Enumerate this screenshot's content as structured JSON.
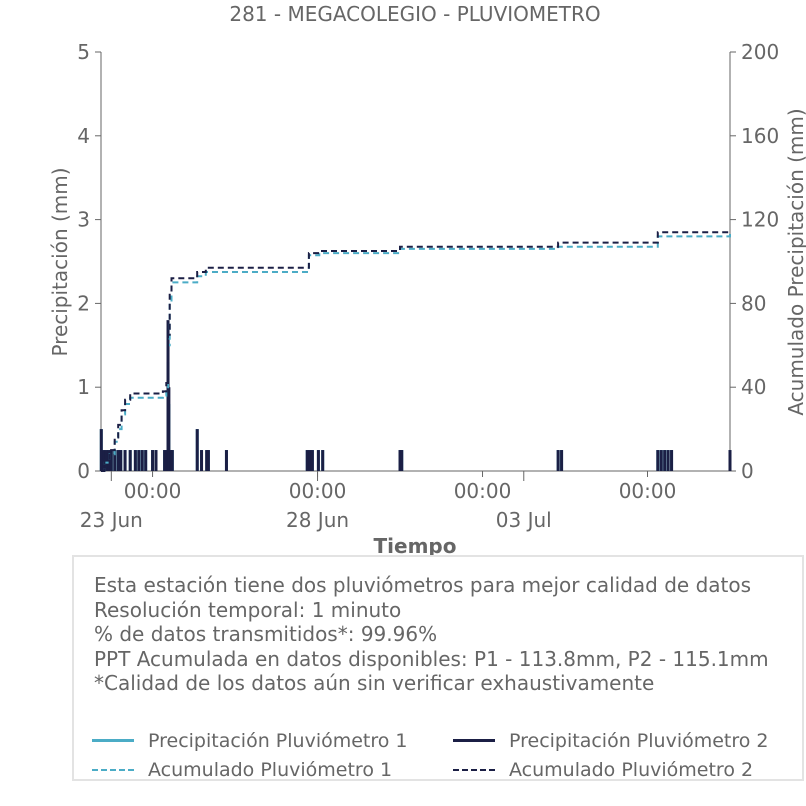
{
  "colors": {
    "p1": "#4bacc6",
    "p2": "#1b1f45",
    "text": "#666666",
    "axis": "#666666"
  },
  "chart_data": {
    "type": "line",
    "title": "281 - MEGACOLEGIO - PLUVIOMETRO",
    "xlabel": "Tiempo",
    "ylabel": "Precipitación (mm)",
    "y2label": "Acumulado Precipitación (mm)",
    "x_start": "2023-06-22T18:00",
    "x_end": "2023-07-08T00:00",
    "ylim": [
      0,
      5
    ],
    "y2lim": [
      0,
      200
    ],
    "yticks": [
      "0",
      "1",
      "2",
      "3",
      "4",
      "5"
    ],
    "y2ticks": [
      "0",
      "40",
      "80",
      "120",
      "160",
      "200"
    ],
    "xtick_labels": [
      {
        "x": "2023-06-24T00:00",
        "label": "00:00"
      },
      {
        "x": "2023-06-28T00:00",
        "label": "00:00"
      },
      {
        "x": "2023-07-02T00:00",
        "label": "00:00"
      },
      {
        "x": "2023-07-06T00:00",
        "label": "00:00"
      },
      {
        "x": "2023-07-10T00:00",
        "label": "00:00"
      }
    ],
    "xdate_labels": [
      {
        "x": "2023-06-23T00:00",
        "label": "23 Jun"
      },
      {
        "x": "2023-06-28T00:00",
        "label": "28 Jun"
      },
      {
        "x": "2023-07-03T00:00",
        "label": "03 Jul"
      }
    ],
    "series": [
      {
        "name": "Precipitación Pluviómetro 1",
        "axis": "left",
        "style": "bar",
        "color": "#4bacc6",
        "points": [
          [
            "2023-06-22T18:10",
            0.5
          ],
          [
            "2023-06-22T19:30",
            0.25
          ],
          [
            "2023-06-22T21:00",
            0.25
          ],
          [
            "2023-06-22T22:30",
            0.25
          ],
          [
            "2023-06-23T00:00",
            0.25
          ],
          [
            "2023-06-23T02:00",
            0.25
          ],
          [
            "2023-06-23T04:00",
            0.25
          ],
          [
            "2023-06-23T05:30",
            0.25
          ],
          [
            "2023-06-23T08:00",
            0.25
          ],
          [
            "2023-06-23T11:00",
            0.25
          ],
          [
            "2023-06-23T14:00",
            0.25
          ],
          [
            "2023-06-23T16:00",
            0.25
          ],
          [
            "2023-06-23T18:00",
            0.25
          ],
          [
            "2023-06-23T20:00",
            0.25
          ],
          [
            "2023-06-24T00:00",
            0.25
          ],
          [
            "2023-06-24T02:00",
            0.25
          ],
          [
            "2023-06-24T07:00",
            0.25
          ],
          [
            "2023-06-24T08:30",
            0.25
          ],
          [
            "2023-06-24T09:00",
            1.3
          ],
          [
            "2023-06-24T09:30",
            0.8
          ],
          [
            "2023-06-24T10:30",
            0.25
          ],
          [
            "2023-06-24T11:30",
            0.25
          ],
          [
            "2023-06-25T02:00",
            0.5
          ],
          [
            "2023-06-25T04:30",
            0.25
          ],
          [
            "2023-06-25T07:30",
            0.25
          ],
          [
            "2023-06-25T08:30",
            0.25
          ],
          [
            "2023-06-25T19:00",
            0.25
          ],
          [
            "2023-06-27T18:00",
            0.25
          ],
          [
            "2023-06-27T19:30",
            0.25
          ],
          [
            "2023-06-27T21:00",
            0.25
          ],
          [
            "2023-06-28T00:30",
            0.25
          ],
          [
            "2023-06-28T03:00",
            0.25
          ],
          [
            "2023-06-30T00:00",
            0.25
          ],
          [
            "2023-06-30T01:00",
            0.25
          ],
          [
            "2023-07-03T20:00",
            0.25
          ],
          [
            "2023-07-03T22:00",
            0.25
          ],
          [
            "2023-07-06T06:00",
            0.25
          ],
          [
            "2023-07-06T08:00",
            0.25
          ],
          [
            "2023-07-06T10:00",
            0.25
          ],
          [
            "2023-07-06T12:00",
            0.25
          ],
          [
            "2023-07-06T14:00",
            0.25
          ],
          [
            "2023-07-08T00:00",
            0.25
          ]
        ]
      },
      {
        "name": "Precipitación Pluviómetro 2",
        "axis": "left",
        "style": "bar",
        "color": "#1b1f45",
        "points": [
          [
            "2023-06-22T18:10",
            0.5
          ],
          [
            "2023-06-22T19:30",
            0.25
          ],
          [
            "2023-06-22T21:00",
            0.25
          ],
          [
            "2023-06-22T22:30",
            0.25
          ],
          [
            "2023-06-23T00:00",
            0.25
          ],
          [
            "2023-06-23T02:00",
            0.25
          ],
          [
            "2023-06-23T04:00",
            0.25
          ],
          [
            "2023-06-23T05:30",
            0.25
          ],
          [
            "2023-06-23T08:00",
            0.25
          ],
          [
            "2023-06-23T11:00",
            0.25
          ],
          [
            "2023-06-23T14:00",
            0.25
          ],
          [
            "2023-06-23T16:00",
            0.25
          ],
          [
            "2023-06-23T18:00",
            0.25
          ],
          [
            "2023-06-23T20:00",
            0.25
          ],
          [
            "2023-06-24T00:00",
            0.25
          ],
          [
            "2023-06-24T02:00",
            0.25
          ],
          [
            "2023-06-24T07:00",
            0.25
          ],
          [
            "2023-06-24T08:30",
            0.25
          ],
          [
            "2023-06-24T09:00",
            1.8
          ],
          [
            "2023-06-24T09:30",
            1.0
          ],
          [
            "2023-06-24T10:30",
            0.25
          ],
          [
            "2023-06-24T11:30",
            0.25
          ],
          [
            "2023-06-25T02:00",
            0.5
          ],
          [
            "2023-06-25T04:30",
            0.25
          ],
          [
            "2023-06-25T07:30",
            0.25
          ],
          [
            "2023-06-25T08:30",
            0.25
          ],
          [
            "2023-06-25T19:00",
            0.25
          ],
          [
            "2023-06-27T18:00",
            0.25
          ],
          [
            "2023-06-27T19:30",
            0.25
          ],
          [
            "2023-06-27T21:00",
            0.25
          ],
          [
            "2023-06-28T00:30",
            0.25
          ],
          [
            "2023-06-28T03:00",
            0.25
          ],
          [
            "2023-06-30T00:00",
            0.25
          ],
          [
            "2023-06-30T01:00",
            0.25
          ],
          [
            "2023-07-03T20:00",
            0.25
          ],
          [
            "2023-07-03T22:00",
            0.25
          ],
          [
            "2023-07-06T06:00",
            0.25
          ],
          [
            "2023-07-06T08:00",
            0.25
          ],
          [
            "2023-07-06T10:00",
            0.25
          ],
          [
            "2023-07-06T12:00",
            0.25
          ],
          [
            "2023-07-06T14:00",
            0.25
          ],
          [
            "2023-07-08T00:00",
            0.25
          ]
        ]
      },
      {
        "name": "Acumulado Pluviómetro 1",
        "axis": "right",
        "style": "dashed-step",
        "color": "#4bacc6",
        "points": [
          [
            "2023-06-22T18:00",
            0
          ],
          [
            "2023-06-22T20:00",
            4
          ],
          [
            "2023-06-22T23:00",
            8
          ],
          [
            "2023-06-23T02:00",
            14
          ],
          [
            "2023-06-23T04:00",
            20
          ],
          [
            "2023-06-23T06:00",
            27
          ],
          [
            "2023-06-23T08:00",
            32
          ],
          [
            "2023-06-23T11:00",
            35
          ],
          [
            "2023-06-23T13:00",
            35
          ],
          [
            "2023-06-24T06:00",
            36
          ],
          [
            "2023-06-24T08:00",
            40
          ],
          [
            "2023-06-24T09:00",
            60
          ],
          [
            "2023-06-24T10:00",
            80
          ],
          [
            "2023-06-24T11:00",
            90
          ],
          [
            "2023-06-25T02:00",
            93
          ],
          [
            "2023-06-25T07:00",
            95
          ],
          [
            "2023-06-27T18:00",
            95
          ],
          [
            "2023-06-27T19:00",
            103
          ],
          [
            "2023-06-28T01:00",
            104
          ],
          [
            "2023-06-30T00:00",
            106
          ],
          [
            "2023-07-03T20:00",
            107
          ],
          [
            "2023-07-06T06:00",
            112
          ],
          [
            "2023-07-08T00:00",
            114
          ]
        ]
      },
      {
        "name": "Acumulado Pluviómetro 2",
        "axis": "right",
        "style": "dashed-step",
        "color": "#1b1f45",
        "points": [
          [
            "2023-06-22T18:00",
            0
          ],
          [
            "2023-06-22T20:00",
            5
          ],
          [
            "2023-06-22T23:00",
            10
          ],
          [
            "2023-06-23T02:00",
            16
          ],
          [
            "2023-06-23T04:00",
            22
          ],
          [
            "2023-06-23T06:00",
            29
          ],
          [
            "2023-06-23T08:00",
            34
          ],
          [
            "2023-06-23T11:00",
            37
          ],
          [
            "2023-06-23T13:00",
            37
          ],
          [
            "2023-06-24T06:00",
            38
          ],
          [
            "2023-06-24T08:00",
            42
          ],
          [
            "2023-06-24T09:00",
            65
          ],
          [
            "2023-06-24T10:00",
            85
          ],
          [
            "2023-06-24T11:00",
            92
          ],
          [
            "2023-06-25T02:00",
            95
          ],
          [
            "2023-06-25T07:00",
            97
          ],
          [
            "2023-06-27T18:00",
            97
          ],
          [
            "2023-06-27T19:00",
            104
          ],
          [
            "2023-06-28T01:00",
            105
          ],
          [
            "2023-06-30T00:00",
            107
          ],
          [
            "2023-07-03T20:00",
            109
          ],
          [
            "2023-07-06T06:00",
            114
          ],
          [
            "2023-07-08T00:00",
            115
          ]
        ]
      }
    ]
  },
  "info": {
    "lines": [
      "Esta estación tiene dos pluviómetros para mejor calidad de datos",
      "Resolución temporal: 1 minuto",
      "% de datos transmitidos*: 99.96%",
      "PPT Acumulada en datos disponibles: P1 - 113.8mm, P2 - 115.1mm",
      "*Calidad de los datos aún sin verificar exhaustivamente"
    ]
  },
  "legend": {
    "p1_precip": "Precipitación Pluviómetro 1",
    "p2_precip": "Precipitación Pluviómetro 2",
    "p1_acum": "Acumulado Pluviómetro 1",
    "p2_acum": "Acumulado Pluviómetro 2"
  }
}
